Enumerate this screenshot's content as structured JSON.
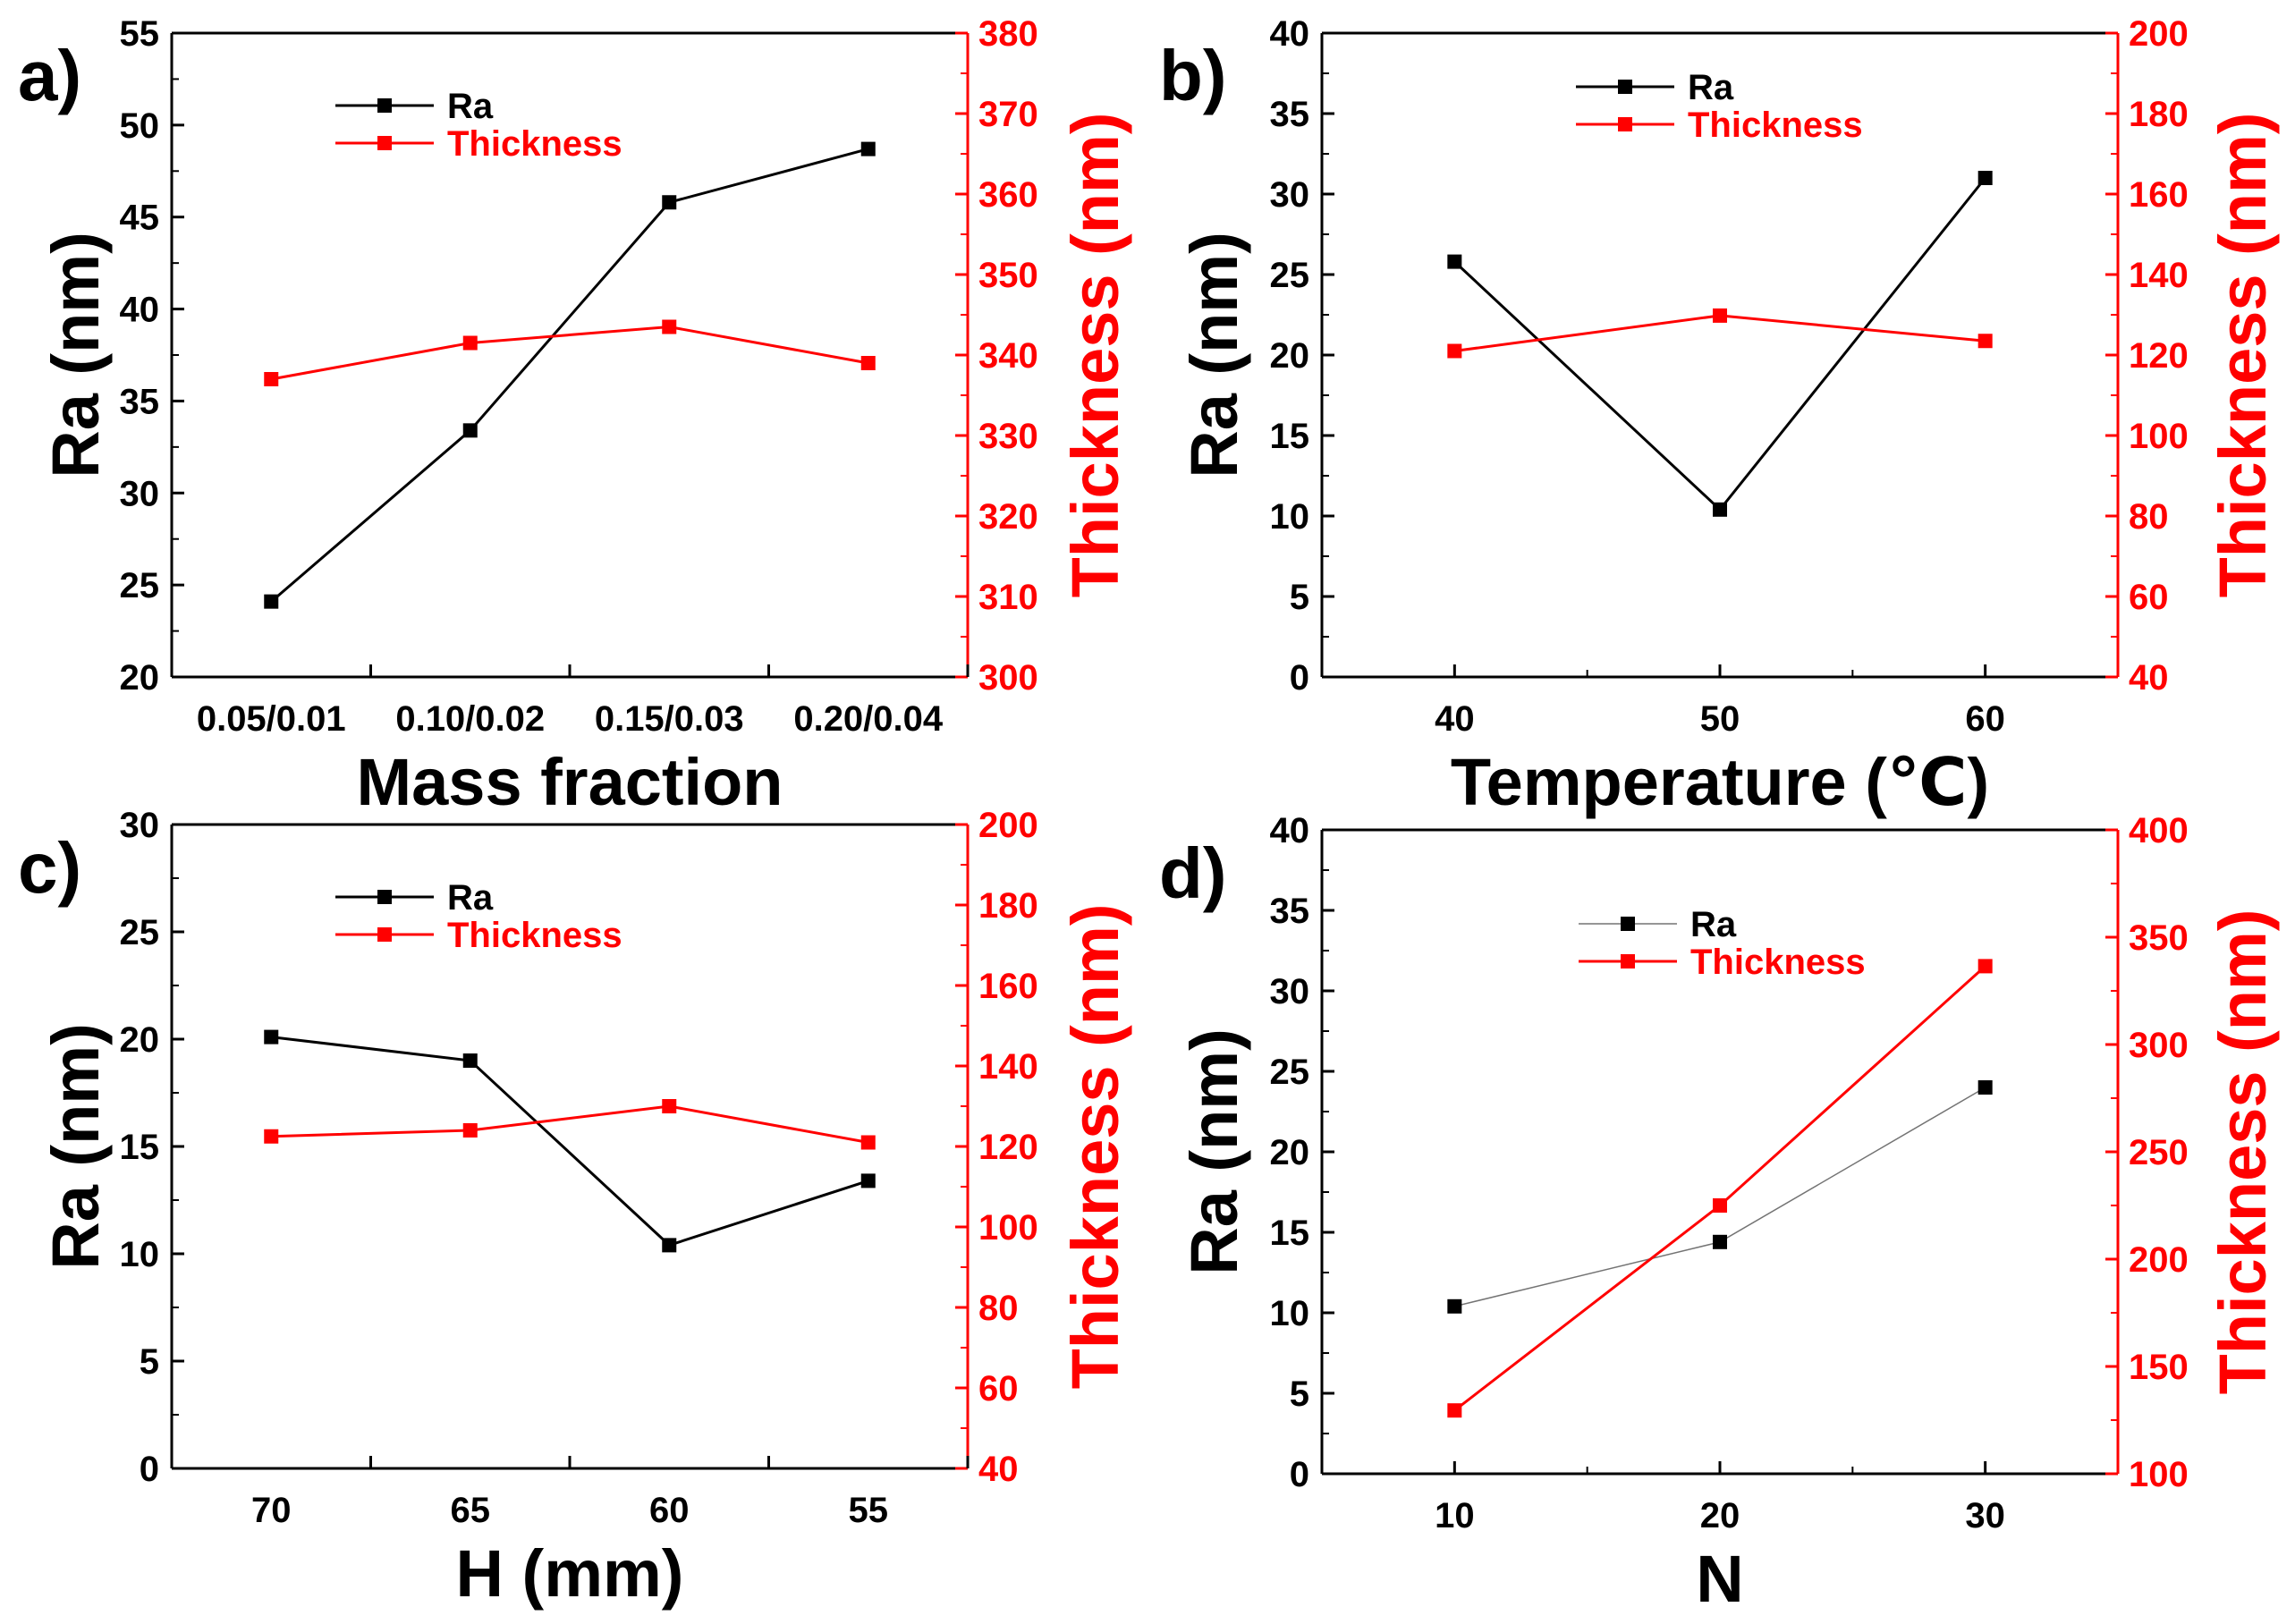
{
  "colors": {
    "ra": "#000000",
    "thickness": "#ff0000",
    "axis": "#000000"
  },
  "chart_data": [
    {
      "type": "line",
      "panel_label": "a)",
      "xlabel": "Mass fraction",
      "ylabel": "Ra (nm)",
      "y2label": "Thickness (nm)",
      "categories": [
        "0.05/0.01",
        "0.10/0.02",
        "0.15/0.03",
        "0.20/0.04"
      ],
      "ylim": [
        20,
        55
      ],
      "yticks": [
        20,
        25,
        30,
        35,
        40,
        45,
        50,
        55
      ],
      "y2lim": [
        300,
        380
      ],
      "y2ticks": [
        300,
        310,
        320,
        330,
        340,
        350,
        360,
        370,
        380
      ],
      "legend_position": "top-left",
      "series": [
        {
          "name": "Ra",
          "axis": "left",
          "color": "#000000",
          "values": [
            24.1,
            33.4,
            45.8,
            48.7
          ]
        },
        {
          "name": "Thickness",
          "axis": "right",
          "color": "#ff0000",
          "values": [
            337,
            341.5,
            343.5,
            339
          ]
        }
      ]
    },
    {
      "type": "line",
      "panel_label": "b)",
      "xlabel": "Temperature (℃)",
      "ylabel": "Ra (nm)",
      "y2label": "Thickness (nm)",
      "x": [
        40,
        50,
        60
      ],
      "xlim": [
        35,
        65
      ],
      "xticks": [
        40,
        50,
        60
      ],
      "ylim": [
        0,
        40
      ],
      "yticks": [
        0,
        5,
        10,
        15,
        20,
        25,
        30,
        35,
        40
      ],
      "y2lim": [
        40,
        200
      ],
      "y2ticks": [
        40,
        60,
        80,
        100,
        120,
        140,
        160,
        180,
        200
      ],
      "legend_position": "top-center",
      "series": [
        {
          "name": "Ra",
          "axis": "left",
          "color": "#000000",
          "values": [
            25.8,
            10.4,
            31.0
          ]
        },
        {
          "name": "Thickness",
          "axis": "right",
          "color": "#ff0000",
          "values": [
            121,
            129.8,
            123.5
          ]
        }
      ]
    },
    {
      "type": "line",
      "panel_label": "c)",
      "xlabel": "H (mm)",
      "ylabel": "Ra (nm)",
      "y2label": "Thickness (nm)",
      "categories": [
        "70",
        "65",
        "60",
        "55"
      ],
      "ylim": [
        0,
        30
      ],
      "yticks": [
        0,
        5,
        10,
        15,
        20,
        25,
        30
      ],
      "y2lim": [
        40,
        200
      ],
      "y2ticks": [
        40,
        60,
        80,
        100,
        120,
        140,
        160,
        180,
        200
      ],
      "legend_position": "top-left",
      "series": [
        {
          "name": "Ra",
          "axis": "left",
          "color": "#000000",
          "values": [
            20.1,
            19.0,
            10.4,
            13.4
          ]
        },
        {
          "name": "Thickness",
          "axis": "right",
          "color": "#ff0000",
          "values": [
            122.5,
            124,
            130,
            121
          ]
        }
      ]
    },
    {
      "type": "line",
      "panel_label": "d)",
      "xlabel": "N",
      "ylabel": "Ra (nm)",
      "y2label": "Thickness (nm)",
      "x": [
        10,
        20,
        30
      ],
      "xlim": [
        5,
        35
      ],
      "xticks": [
        10,
        20,
        30
      ],
      "ylim": [
        0,
        40
      ],
      "yticks": [
        0,
        5,
        10,
        15,
        20,
        25,
        30,
        35,
        40
      ],
      "y2lim": [
        100,
        400
      ],
      "y2ticks": [
        100,
        150,
        200,
        250,
        300,
        350,
        400
      ],
      "legend_position": "top-center",
      "series": [
        {
          "name": "Ra",
          "axis": "left",
          "color": "#000000",
          "values": [
            10.4,
            14.4,
            24.0
          ]
        },
        {
          "name": "Thickness",
          "axis": "right",
          "color": "#ff0000",
          "values": [
            129.5,
            225,
            336.5
          ]
        }
      ]
    }
  ]
}
